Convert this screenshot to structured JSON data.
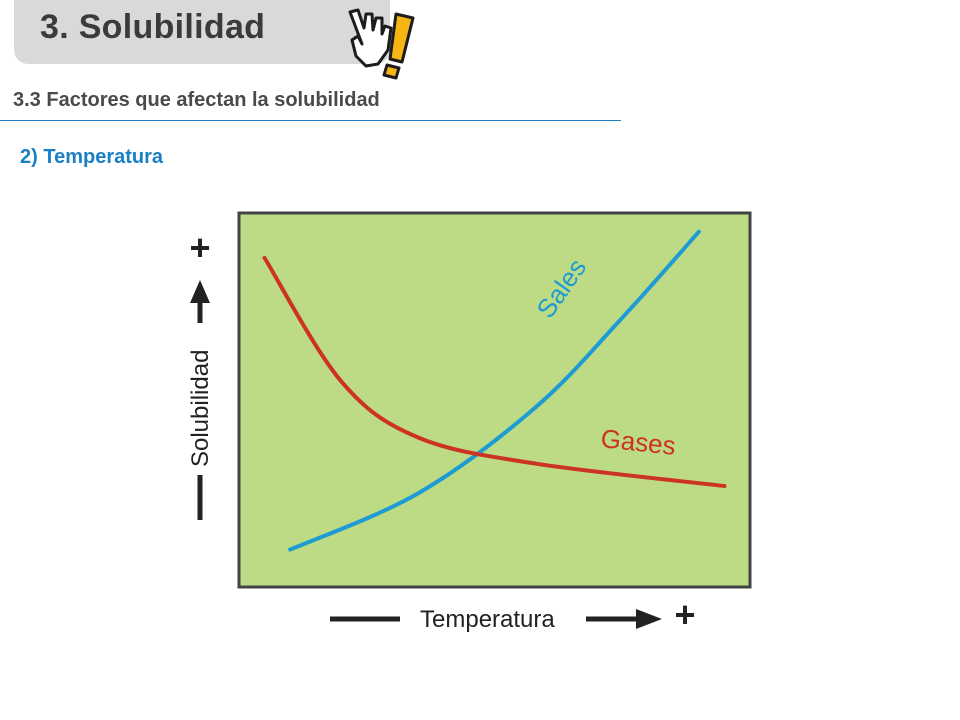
{
  "header": {
    "title": "3. Solubilidad",
    "subtitle": "3.3 Factores que afectan la solubilidad",
    "section": "2) Temperatura"
  },
  "icons": {
    "hand": "pointing-hand-exclamation-icon"
  },
  "colors": {
    "title_tab": "#d9d9d9",
    "accent": "#1a7fc4",
    "plot_bg": "#bcdb84",
    "sales": "#1f9bd3",
    "gases": "#cc3322",
    "exclamation": "#f5b614"
  },
  "chart_data": {
    "type": "line",
    "xlabel": "Temperatura",
    "ylabel": "Solubilidad",
    "x_plus": "+",
    "y_plus": "+",
    "grid": false,
    "series": [
      {
        "name": "Sales",
        "x": [
          0.1,
          0.35,
          0.58,
          0.75,
          0.9
        ],
        "y": [
          0.1,
          0.25,
          0.48,
          0.72,
          0.95
        ]
      },
      {
        "name": "Gases",
        "x": [
          0.05,
          0.2,
          0.35,
          0.58,
          0.95
        ],
        "y": [
          0.88,
          0.55,
          0.4,
          0.33,
          0.27
        ]
      }
    ]
  }
}
